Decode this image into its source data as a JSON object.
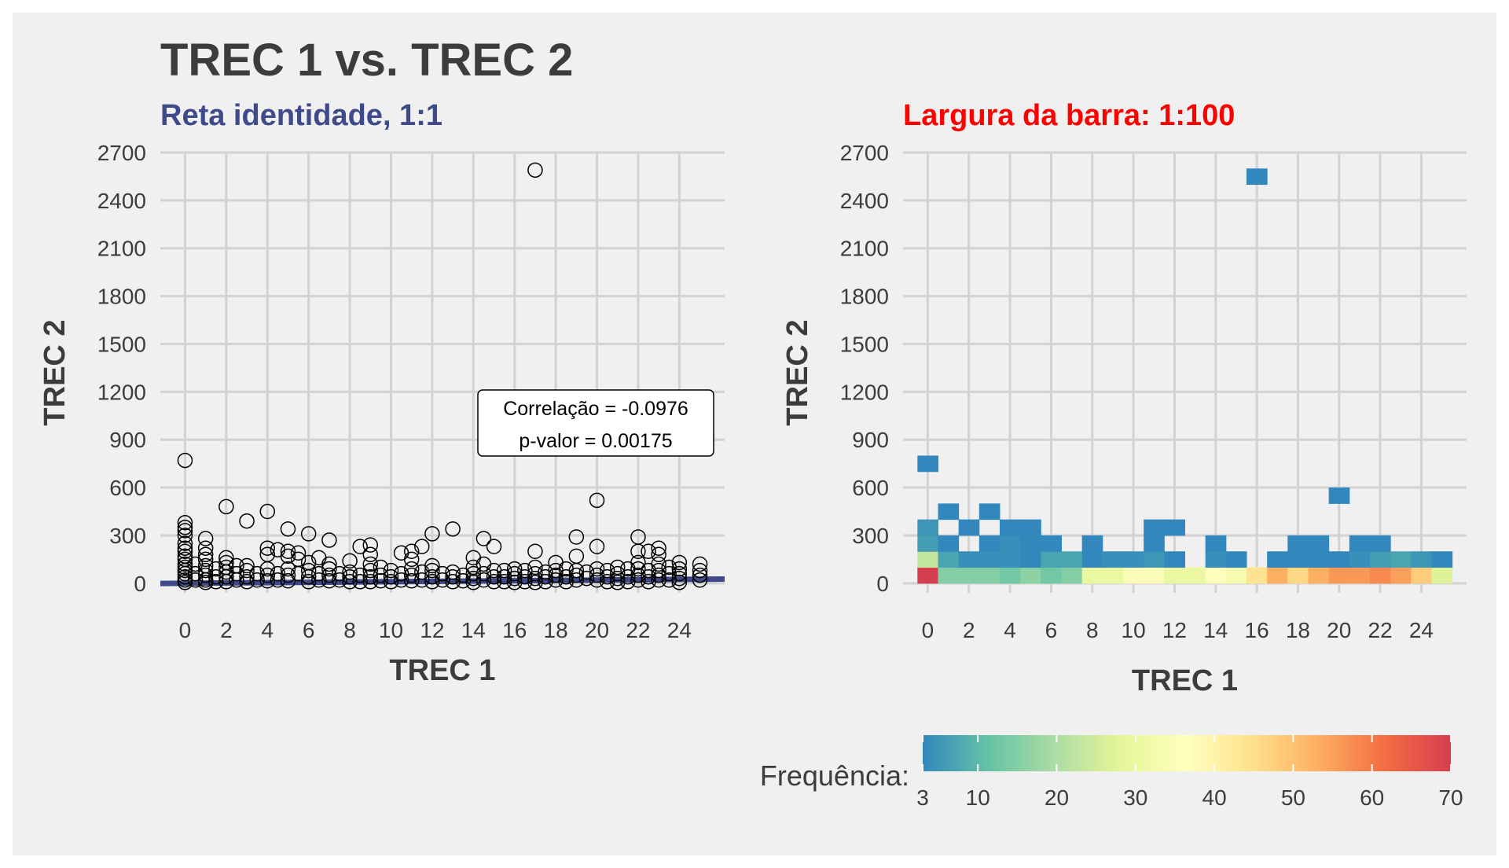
{
  "title": "TREC 1 vs. TREC 2",
  "colors": {
    "background": "#f0f0f0",
    "grid": "#d2d2d2",
    "text": "#3c3c3c",
    "identity_line": "#3e4a89",
    "subtitle_left": "#3e4a89",
    "subtitle_right": "#ff0000",
    "palette": [
      "#3288bd",
      "#66c2a5",
      "#abdda4",
      "#e6f598",
      "#ffffbf",
      "#fee08b",
      "#fdae61",
      "#f46d43",
      "#d53e4f"
    ]
  },
  "chart_data": [
    {
      "type": "scatter",
      "subtitle": "Reta identidade, 1:1",
      "xlabel": "TREC 1",
      "ylabel": "TREC 2",
      "xticks": [
        0,
        2,
        4,
        6,
        8,
        10,
        12,
        14,
        16,
        18,
        20,
        22,
        24
      ],
      "yticks": [
        0,
        300,
        600,
        900,
        1200,
        1500,
        1800,
        2100,
        2400,
        2700
      ],
      "xlim": [
        -1.2,
        26.2
      ],
      "ylim": [
        -60,
        2700
      ],
      "annotation": {
        "line1": "Correlação = -0.0976",
        "line2": "p-valor = 0.00175"
      },
      "points": [
        [
          0,
          770
        ],
        [
          0,
          380
        ],
        [
          0,
          350
        ],
        [
          0,
          330
        ],
        [
          0,
          300
        ],
        [
          0,
          250
        ],
        [
          0,
          220
        ],
        [
          0,
          200
        ],
        [
          0,
          170
        ],
        [
          0,
          150
        ],
        [
          0,
          120
        ],
        [
          0,
          100
        ],
        [
          0,
          80
        ],
        [
          0,
          60
        ],
        [
          0,
          40
        ],
        [
          0,
          20
        ],
        [
          0,
          5
        ],
        [
          0.5,
          120
        ],
        [
          0.5,
          60
        ],
        [
          0.5,
          20
        ],
        [
          1,
          280
        ],
        [
          1,
          220
        ],
        [
          1,
          180
        ],
        [
          1,
          150
        ],
        [
          1,
          110
        ],
        [
          1,
          80
        ],
        [
          1,
          50
        ],
        [
          1,
          20
        ],
        [
          1,
          5
        ],
        [
          1.5,
          90
        ],
        [
          1.5,
          40
        ],
        [
          1.5,
          10
        ],
        [
          2,
          480
        ],
        [
          2,
          160
        ],
        [
          2,
          130
        ],
        [
          2,
          100
        ],
        [
          2,
          70
        ],
        [
          2,
          40
        ],
        [
          2,
          10
        ],
        [
          2.5,
          110
        ],
        [
          2.5,
          60
        ],
        [
          2.5,
          20
        ],
        [
          3,
          390
        ],
        [
          3,
          110
        ],
        [
          3,
          80
        ],
        [
          3,
          40
        ],
        [
          3,
          10
        ],
        [
          3.5,
          60
        ],
        [
          3.5,
          20
        ],
        [
          4,
          450
        ],
        [
          4,
          220
        ],
        [
          4,
          180
        ],
        [
          4,
          90
        ],
        [
          4,
          50
        ],
        [
          4,
          15
        ],
        [
          4.5,
          210
        ],
        [
          4.5,
          60
        ],
        [
          4.5,
          20
        ],
        [
          5,
          340
        ],
        [
          5,
          200
        ],
        [
          5,
          170
        ],
        [
          5,
          90
        ],
        [
          5,
          50
        ],
        [
          5,
          15
        ],
        [
          5.5,
          190
        ],
        [
          5.5,
          150
        ],
        [
          5.5,
          60
        ],
        [
          6,
          310
        ],
        [
          6,
          130
        ],
        [
          6,
          80
        ],
        [
          6,
          40
        ],
        [
          6,
          10
        ],
        [
          6.5,
          160
        ],
        [
          6.5,
          60
        ],
        [
          6.5,
          20
        ],
        [
          7,
          270
        ],
        [
          7,
          120
        ],
        [
          7,
          90
        ],
        [
          7,
          50
        ],
        [
          7,
          15
        ],
        [
          7.5,
          60
        ],
        [
          7.5,
          20
        ],
        [
          8,
          140
        ],
        [
          8,
          70
        ],
        [
          8,
          40
        ],
        [
          8,
          10
        ],
        [
          8.5,
          230
        ],
        [
          8.5,
          50
        ],
        [
          8.5,
          10
        ],
        [
          9,
          240
        ],
        [
          9,
          180
        ],
        [
          9,
          120
        ],
        [
          9,
          80
        ],
        [
          9,
          40
        ],
        [
          9,
          10
        ],
        [
          9.5,
          100
        ],
        [
          9.5,
          50
        ],
        [
          9.5,
          15
        ],
        [
          10,
          80
        ],
        [
          10,
          40
        ],
        [
          10,
          10
        ],
        [
          10.5,
          190
        ],
        [
          10.5,
          60
        ],
        [
          10.5,
          20
        ],
        [
          11,
          200
        ],
        [
          11,
          150
        ],
        [
          11,
          90
        ],
        [
          11,
          50
        ],
        [
          11,
          15
        ],
        [
          11.5,
          230
        ],
        [
          11.5,
          70
        ],
        [
          11.5,
          20
        ],
        [
          12,
          310
        ],
        [
          12,
          110
        ],
        [
          12,
          80
        ],
        [
          12,
          40
        ],
        [
          12,
          10
        ],
        [
          12.5,
          60
        ],
        [
          12.5,
          20
        ],
        [
          13,
          340
        ],
        [
          13,
          70
        ],
        [
          13,
          40
        ],
        [
          13,
          10
        ],
        [
          13.5,
          50
        ],
        [
          13.5,
          15
        ],
        [
          14,
          160
        ],
        [
          14,
          100
        ],
        [
          14,
          60
        ],
        [
          14,
          30
        ],
        [
          14,
          5
        ],
        [
          14.5,
          280
        ],
        [
          14.5,
          120
        ],
        [
          14.5,
          60
        ],
        [
          14.5,
          20
        ],
        [
          15,
          230
        ],
        [
          15,
          80
        ],
        [
          15,
          40
        ],
        [
          15,
          10
        ],
        [
          15.5,
          80
        ],
        [
          15.5,
          40
        ],
        [
          15.5,
          10
        ],
        [
          16,
          90
        ],
        [
          16,
          60
        ],
        [
          16,
          30
        ],
        [
          16,
          5
        ],
        [
          16.5,
          80
        ],
        [
          16.5,
          40
        ],
        [
          16.5,
          10
        ],
        [
          17,
          2590
        ],
        [
          17,
          200
        ],
        [
          17,
          100
        ],
        [
          17,
          60
        ],
        [
          17,
          30
        ],
        [
          17,
          5
        ],
        [
          17.5,
          70
        ],
        [
          17.5,
          40
        ],
        [
          17.5,
          10
        ],
        [
          18,
          130
        ],
        [
          18,
          80
        ],
        [
          18,
          50
        ],
        [
          18,
          20
        ],
        [
          18.5,
          90
        ],
        [
          18.5,
          40
        ],
        [
          18.5,
          10
        ],
        [
          19,
          290
        ],
        [
          19,
          170
        ],
        [
          19,
          80
        ],
        [
          19,
          50
        ],
        [
          19,
          20
        ],
        [
          19.5,
          70
        ],
        [
          19.5,
          30
        ],
        [
          20,
          520
        ],
        [
          20,
          230
        ],
        [
          20,
          90
        ],
        [
          20,
          50
        ],
        [
          20,
          20
        ],
        [
          20.5,
          80
        ],
        [
          20.5,
          40
        ],
        [
          20.5,
          10
        ],
        [
          21,
          100
        ],
        [
          21,
          60
        ],
        [
          21,
          30
        ],
        [
          21,
          5
        ],
        [
          21.5,
          90
        ],
        [
          21.5,
          40
        ],
        [
          21.5,
          10
        ],
        [
          22,
          290
        ],
        [
          22,
          200
        ],
        [
          22,
          130
        ],
        [
          22,
          90
        ],
        [
          22,
          50
        ],
        [
          22,
          20
        ],
        [
          22.5,
          200
        ],
        [
          22.5,
          80
        ],
        [
          22.5,
          40
        ],
        [
          22.5,
          10
        ],
        [
          23,
          220
        ],
        [
          23,
          180
        ],
        [
          23,
          120
        ],
        [
          23,
          80
        ],
        [
          23,
          50
        ],
        [
          23,
          20
        ],
        [
          23.5,
          100
        ],
        [
          23.5,
          60
        ],
        [
          23.5,
          20
        ],
        [
          24,
          130
        ],
        [
          24,
          90
        ],
        [
          24,
          60
        ],
        [
          24,
          30
        ],
        [
          24,
          5
        ],
        [
          25,
          120
        ],
        [
          25,
          80
        ],
        [
          25,
          50
        ],
        [
          25,
          20
        ]
      ]
    },
    {
      "type": "heatmap",
      "subtitle": "Largura da barra: 1:100",
      "xlabel": "TREC 1",
      "ylabel": "TREC 2",
      "xticks": [
        0,
        2,
        4,
        6,
        8,
        10,
        12,
        14,
        16,
        18,
        20,
        22,
        24
      ],
      "yticks": [
        0,
        300,
        600,
        900,
        1200,
        1500,
        1800,
        2100,
        2400,
        2700
      ],
      "xlim": [
        -1.2,
        26.2
      ],
      "ylim": [
        -60,
        2700
      ],
      "bin_width": {
        "x": 1,
        "y": 100
      },
      "cells": [
        {
          "x": 0,
          "y": 0,
          "count": 70
        },
        {
          "x": 1,
          "y": 0,
          "count": 15
        },
        {
          "x": 2,
          "y": 0,
          "count": 15
        },
        {
          "x": 3,
          "y": 0,
          "count": 15
        },
        {
          "x": 4,
          "y": 0,
          "count": 13
        },
        {
          "x": 5,
          "y": 0,
          "count": 16
        },
        {
          "x": 6,
          "y": 0,
          "count": 13
        },
        {
          "x": 7,
          "y": 0,
          "count": 15
        },
        {
          "x": 8,
          "y": 0,
          "count": 30
        },
        {
          "x": 9,
          "y": 0,
          "count": 30
        },
        {
          "x": 10,
          "y": 0,
          "count": 35
        },
        {
          "x": 11,
          "y": 0,
          "count": 35
        },
        {
          "x": 12,
          "y": 0,
          "count": 30
        },
        {
          "x": 13,
          "y": 0,
          "count": 30
        },
        {
          "x": 14,
          "y": 0,
          "count": 36
        },
        {
          "x": 15,
          "y": 0,
          "count": 33
        },
        {
          "x": 16,
          "y": 0,
          "count": 44
        },
        {
          "x": 17,
          "y": 0,
          "count": 53
        },
        {
          "x": 18,
          "y": 0,
          "count": 46
        },
        {
          "x": 19,
          "y": 0,
          "count": 53
        },
        {
          "x": 20,
          "y": 0,
          "count": 56
        },
        {
          "x": 21,
          "y": 0,
          "count": 56
        },
        {
          "x": 22,
          "y": 0,
          "count": 58
        },
        {
          "x": 23,
          "y": 0,
          "count": 55
        },
        {
          "x": 24,
          "y": 0,
          "count": 48
        },
        {
          "x": 25,
          "y": 0,
          "count": 27
        },
        {
          "x": 0,
          "y": 100,
          "count": 23
        },
        {
          "x": 1,
          "y": 100,
          "count": 7
        },
        {
          "x": 2,
          "y": 100,
          "count": 4
        },
        {
          "x": 3,
          "y": 100,
          "count": 4
        },
        {
          "x": 4,
          "y": 100,
          "count": 4
        },
        {
          "x": 5,
          "y": 100,
          "count": 3
        },
        {
          "x": 6,
          "y": 100,
          "count": 7
        },
        {
          "x": 7,
          "y": 100,
          "count": 7
        },
        {
          "x": 8,
          "y": 100,
          "count": 3
        },
        {
          "x": 9,
          "y": 100,
          "count": 4
        },
        {
          "x": 10,
          "y": 100,
          "count": 4
        },
        {
          "x": 11,
          "y": 100,
          "count": 5
        },
        {
          "x": 12,
          "y": 100,
          "count": 3
        },
        {
          "x": 14,
          "y": 100,
          "count": 4
        },
        {
          "x": 15,
          "y": 100,
          "count": 3
        },
        {
          "x": 17,
          "y": 100,
          "count": 3
        },
        {
          "x": 18,
          "y": 100,
          "count": 3
        },
        {
          "x": 19,
          "y": 100,
          "count": 3
        },
        {
          "x": 20,
          "y": 100,
          "count": 3
        },
        {
          "x": 21,
          "y": 100,
          "count": 4
        },
        {
          "x": 22,
          "y": 100,
          "count": 6
        },
        {
          "x": 23,
          "y": 100,
          "count": 7
        },
        {
          "x": 24,
          "y": 100,
          "count": 5
        },
        {
          "x": 25,
          "y": 100,
          "count": 3
        },
        {
          "x": 0,
          "y": 200,
          "count": 6
        },
        {
          "x": 1,
          "y": 200,
          "count": 3
        },
        {
          "x": 3,
          "y": 200,
          "count": 3
        },
        {
          "x": 4,
          "y": 200,
          "count": 4
        },
        {
          "x": 5,
          "y": 200,
          "count": 3
        },
        {
          "x": 6,
          "y": 200,
          "count": 3
        },
        {
          "x": 8,
          "y": 200,
          "count": 3
        },
        {
          "x": 11,
          "y": 200,
          "count": 3
        },
        {
          "x": 14,
          "y": 200,
          "count": 3
        },
        {
          "x": 18,
          "y": 200,
          "count": 3
        },
        {
          "x": 19,
          "y": 200,
          "count": 3
        },
        {
          "x": 21,
          "y": 200,
          "count": 3
        },
        {
          "x": 22,
          "y": 200,
          "count": 3
        },
        {
          "x": 0,
          "y": 300,
          "count": 5
        },
        {
          "x": 2,
          "y": 300,
          "count": 3
        },
        {
          "x": 4,
          "y": 300,
          "count": 3
        },
        {
          "x": 5,
          "y": 300,
          "count": 3
        },
        {
          "x": 11,
          "y": 300,
          "count": 3
        },
        {
          "x": 12,
          "y": 300,
          "count": 3
        },
        {
          "x": 1,
          "y": 400,
          "count": 3
        },
        {
          "x": 3,
          "y": 400,
          "count": 3
        },
        {
          "x": 20,
          "y": 500,
          "count": 3
        },
        {
          "x": 0,
          "y": 700,
          "count": 3
        },
        {
          "x": 16,
          "y": 2500,
          "count": 3
        }
      ]
    }
  ],
  "legend": {
    "title": "Frequência:",
    "min": 3,
    "max": 70,
    "ticks": [
      3,
      10,
      20,
      30,
      40,
      50,
      60,
      70
    ]
  }
}
